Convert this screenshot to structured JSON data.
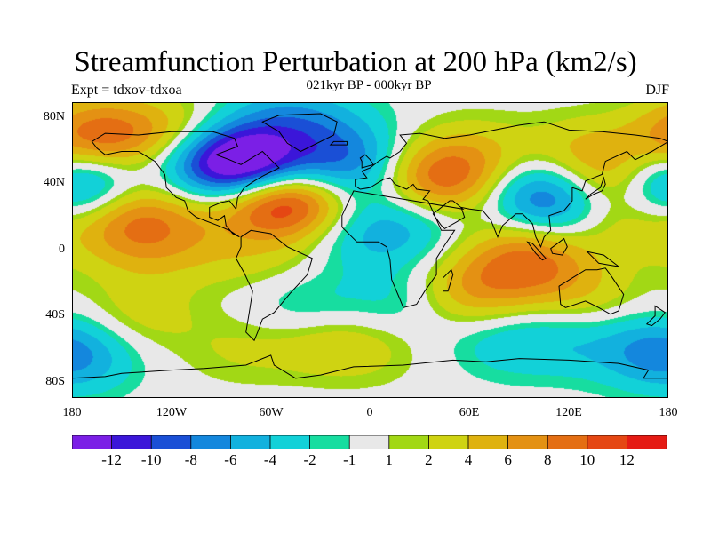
{
  "title": "Streamfunction Perturbation at 200 hPa (km2/s)",
  "subtitle": "021kyr BP - 000kyr BP",
  "left_label": "Expt = tdxov-tdxoa",
  "right_label": "DJF",
  "map": {
    "lat_ticks": [
      "80N",
      "40N",
      "0",
      "40S",
      "80S"
    ],
    "lon_ticks": [
      "180",
      "120W",
      "60W",
      "0",
      "60E",
      "120E",
      "180"
    ],
    "land_color": "#000000",
    "background_color": "#e8e8e8"
  },
  "colorbar": {
    "colors": [
      "#7b1fe6",
      "#3b16d9",
      "#1a4fd6",
      "#1487dd",
      "#12b1de",
      "#12d1d8",
      "#17dda0",
      "#e8e8e8",
      "#a2d815",
      "#cfd312",
      "#dfb20f",
      "#e49113",
      "#e46e13",
      "#e54713",
      "#e51b14"
    ],
    "labels": [
      "-12",
      "-10",
      "-8",
      "-6",
      "-4",
      "-2",
      "-1",
      "1",
      "2",
      "4",
      "6",
      "8",
      "10",
      "12"
    ]
  },
  "chart_data": {
    "type": "heatmap",
    "title": "Streamfunction Perturbation at 200 hPa (km2/s)",
    "subtitle": "021kyr BP - 000kyr BP",
    "xlabel": "",
    "ylabel": "",
    "x_ticks": [
      "180",
      "120W",
      "60W",
      "0",
      "60E",
      "120E",
      "180"
    ],
    "y_ticks": [
      "80N",
      "40N",
      "0",
      "40S",
      "80S"
    ],
    "levels": [
      -12,
      -10,
      -8,
      -6,
      -4,
      -2,
      -1,
      1,
      2,
      4,
      6,
      8,
      10,
      12
    ],
    "features": [
      {
        "lon": -165,
        "lat": 70,
        "value": 9
      },
      {
        "lon": -120,
        "lat": 72,
        "value": 4
      },
      {
        "lon": -55,
        "lat": 80,
        "value": -4
      },
      {
        "lon": -25,
        "lat": 75,
        "value": -3
      },
      {
        "lon": -80,
        "lat": 55,
        "value": -9
      },
      {
        "lon": -90,
        "lat": 50,
        "value": -7
      },
      {
        "lon": -60,
        "lat": 48,
        "value": -6
      },
      {
        "lon": -10,
        "lat": 50,
        "value": -8
      },
      {
        "lon": -60,
        "lat": 32,
        "value": 11
      },
      {
        "lon": -40,
        "lat": 30,
        "value": 6
      },
      {
        "lon": -150,
        "lat": 22,
        "value": 6
      },
      {
        "lon": -125,
        "lat": 20,
        "value": 3
      },
      {
        "lon": -175,
        "lat": 38,
        "value": -6
      },
      {
        "lon": 175,
        "lat": 37,
        "value": -6
      },
      {
        "lon": 160,
        "lat": 35,
        "value": 4
      },
      {
        "lon": 155,
        "lat": 15,
        "value": 3
      },
      {
        "lon": 30,
        "lat": 45,
        "value": 6
      },
      {
        "lon": 55,
        "lat": 42,
        "value": 5
      },
      {
        "lon": 65,
        "lat": 60,
        "value": 3
      },
      {
        "lon": 100,
        "lat": 35,
        "value": -7
      },
      {
        "lon": 120,
        "lat": 28,
        "value": -5
      },
      {
        "lon": 130,
        "lat": 60,
        "value": 4
      },
      {
        "lon": 140,
        "lat": 40,
        "value": 5
      },
      {
        "lon": 20,
        "lat": 15,
        "value": -4
      },
      {
        "lon": -10,
        "lat": 10,
        "value": -3
      },
      {
        "lon": -100,
        "lat": 0,
        "value": 2
      },
      {
        "lon": -140,
        "lat": 0,
        "value": 3
      },
      {
        "lon": -60,
        "lat": -5,
        "value": 2
      },
      {
        "lon": 60,
        "lat": -25,
        "value": 6
      },
      {
        "lon": 100,
        "lat": -10,
        "value": 5
      },
      {
        "lon": 90,
        "lat": 0,
        "value": 4
      },
      {
        "lon": 130,
        "lat": -30,
        "value": 3
      },
      {
        "lon": 20,
        "lat": -30,
        "value": -3
      },
      {
        "lon": -40,
        "lat": -35,
        "value": -3
      },
      {
        "lon": -140,
        "lat": -40,
        "value": 3
      },
      {
        "lon": -30,
        "lat": -55,
        "value": 3
      },
      {
        "lon": -175,
        "lat": -65,
        "value": -4
      },
      {
        "lon": 170,
        "lat": -60,
        "value": -4
      },
      {
        "lon": 80,
        "lat": -55,
        "value": -3
      },
      {
        "lon": 120,
        "lat": -55,
        "value": -3
      },
      {
        "lon": 0,
        "lat": -60,
        "value": 2
      },
      {
        "lon": -80,
        "lat": -60,
        "value": 2
      }
    ]
  }
}
